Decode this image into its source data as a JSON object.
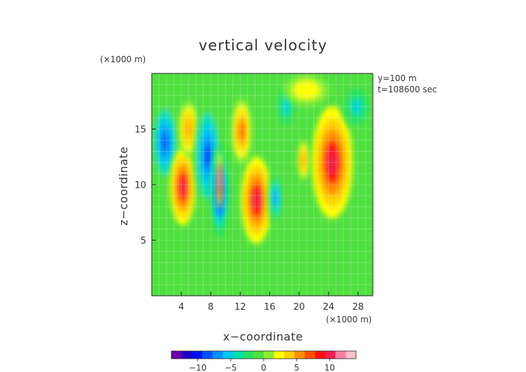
{
  "chart_data": {
    "type": "heatmap",
    "title": "vertical velocity",
    "xlabel": "x−coordinate",
    "ylabel": "z−coordinate",
    "x_unit": "(×1000 m)",
    "y_unit": "(×1000 m)",
    "annotations": [
      "y=100 m",
      "t=108600 sec"
    ],
    "xlim": [
      0,
      30
    ],
    "ylim": [
      0,
      20
    ],
    "x_ticks": [
      4,
      8,
      12,
      16,
      20,
      24,
      28
    ],
    "y_ticks": [
      5,
      10,
      15
    ],
    "x_tick_labels": [
      "4",
      "8",
      "12",
      "16",
      "20",
      "24",
      "28"
    ],
    "y_tick_labels": [
      "5",
      "10",
      "15"
    ],
    "grid": true,
    "colorbar": {
      "range": [
        -14,
        14
      ],
      "ticks": [
        -10,
        -5,
        0,
        5,
        10
      ],
      "tick_labels": [
        "−10",
        "−5",
        "0",
        "5",
        "10"
      ],
      "placement": "bottom",
      "colors": [
        "#6a00a8",
        "#2000c8",
        "#0010f0",
        "#0050ff",
        "#0090ff",
        "#00c8f0",
        "#00e0b0",
        "#28e060",
        "#50e040",
        "#88ee30",
        "#ffff00",
        "#ffd000",
        "#ff9000",
        "#ff5000",
        "#ff1010",
        "#ee2050",
        "#ff80a0",
        "#ffc0c8"
      ]
    },
    "features": [
      {
        "x": 1.8,
        "z": 13.8,
        "value": -9,
        "note": "updraft/downdraft centre, left edge"
      },
      {
        "x": 4.2,
        "z": 9.8,
        "value": 11
      },
      {
        "x": 5.0,
        "z": 15.0,
        "value": 6
      },
      {
        "x": 7.6,
        "z": 12.6,
        "value": -10
      },
      {
        "x": 9.2,
        "z": 9.4,
        "value": -12
      },
      {
        "x": 9.2,
        "z": 10.4,
        "value": 13,
        "note": "narrow white core"
      },
      {
        "x": 12.2,
        "z": 14.8,
        "value": 7
      },
      {
        "x": 14.2,
        "z": 8.6,
        "value": 11
      },
      {
        "x": 16.8,
        "z": 8.8,
        "value": -8
      },
      {
        "x": 18.2,
        "z": 17.0,
        "value": -5
      },
      {
        "x": 24.5,
        "z": 12.0,
        "value": 11
      },
      {
        "x": 20.6,
        "z": 12.2,
        "value": 6
      },
      {
        "x": 21.0,
        "z": 18.5,
        "value": 3
      },
      {
        "x": 27.8,
        "z": 17.0,
        "value": -5
      }
    ]
  }
}
